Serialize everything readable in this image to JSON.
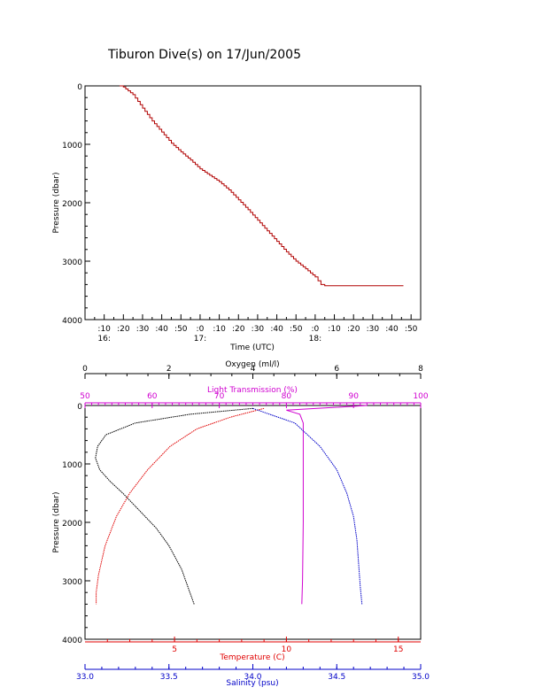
{
  "title": "Tiburon Dive(s) on 17/Jun/2005",
  "colors": {
    "axis": "#000000",
    "depth_trace": "#b00000",
    "oxygen": "#000000",
    "light": "#d000d0",
    "temperature": "#e00000",
    "salinity": "#0000c8"
  },
  "chart_data": [
    {
      "type": "line",
      "title": "Tiburon Dive(s) on 17/Jun/2005",
      "xlabel": "Time (UTC)",
      "ylabel": "Pressure (dbar)",
      "x_unit": "minutes after 16:00 UTC",
      "xlim": [
        0,
        175
      ],
      "ylim": [
        4000,
        0
      ],
      "y_ticks": [
        "0",
        "1000",
        "2000",
        "3000",
        "4000"
      ],
      "x_ticks": [
        ":10",
        ":20",
        ":30",
        ":40",
        ":50",
        ":0",
        ":10",
        ":20",
        ":30",
        ":40",
        ":50",
        ":0",
        ":10",
        ":20",
        ":30",
        ":40",
        ":50"
      ],
      "x_tick_values": [
        10,
        20,
        30,
        40,
        50,
        60,
        70,
        80,
        90,
        100,
        110,
        120,
        130,
        140,
        150,
        160,
        170
      ],
      "hour_labels": [
        "16:",
        "17:",
        "18:"
      ],
      "hour_label_values": [
        10,
        60,
        120
      ],
      "grid": false,
      "series": [
        {
          "x": [
            18,
            20,
            25,
            30,
            35,
            40,
            45,
            50,
            55,
            60,
            65,
            70,
            75,
            80,
            85,
            90,
            95,
            100,
            105,
            110,
            115,
            120,
            123,
            125,
            130,
            140,
            150,
            160,
            166
          ],
          "y": [
            0,
            20,
            150,
            380,
            600,
            790,
            980,
            1130,
            1270,
            1420,
            1530,
            1640,
            1780,
            1950,
            2120,
            2300,
            2480,
            2660,
            2840,
            3000,
            3130,
            3270,
            3400,
            3420,
            3420,
            3420,
            3420,
            3420,
            3420
          ]
        }
      ]
    },
    {
      "type": "line",
      "ylabel": "Pressure (dbar)",
      "ylim": [
        4000,
        0
      ],
      "y_ticks": [
        "0",
        "1000",
        "2000",
        "3000",
        "4000"
      ],
      "grid": false,
      "axes": {
        "oxygen": {
          "label": "Oxygen (ml/l)",
          "range": [
            0,
            8
          ],
          "ticks": [
            "0",
            "2",
            "4",
            "6",
            "8"
          ]
        },
        "light_transmission": {
          "label": "Light Transmission (%)",
          "range": [
            50,
            100
          ],
          "ticks": [
            "50",
            "60",
            "70",
            "80",
            "90",
            "100"
          ]
        },
        "temperature": {
          "label": "Temperature (C)",
          "range": [
            1,
            16
          ],
          "ticks": [
            "5",
            "10",
            "15"
          ]
        },
        "salinity": {
          "label": "Salinity (psu)",
          "range": [
            33.0,
            35.0
          ],
          "ticks": [
            "33.0",
            "33.5",
            "34.0",
            "34.5",
            "35.0"
          ]
        }
      },
      "series": [
        {
          "name": "Oxygen (ml/l)",
          "axis": "oxygen",
          "x": [
            4.0,
            2.5,
            1.2,
            0.5,
            0.3,
            0.25,
            0.35,
            0.6,
            0.9,
            1.3,
            1.7,
            2.0,
            2.3,
            2.5,
            2.6
          ],
          "y": [
            50,
            150,
            300,
            500,
            700,
            900,
            1100,
            1300,
            1500,
            1800,
            2100,
            2400,
            2800,
            3200,
            3400
          ]
        },
        {
          "name": "Light Transmission (%)",
          "axis": "light_transmission",
          "x": [
            92,
            80,
            82,
            82.5,
            82.5,
            82.5,
            82.4,
            82.3
          ],
          "y": [
            0,
            80,
            150,
            300,
            1000,
            2000,
            3000,
            3400
          ]
        },
        {
          "name": "Temperature (C)",
          "axis": "temperature",
          "x": [
            9.0,
            7.5,
            6.0,
            4.8,
            3.8,
            3.0,
            2.4,
            1.9,
            1.6,
            1.5,
            1.5
          ],
          "y": [
            50,
            200,
            400,
            700,
            1100,
            1500,
            1900,
            2400,
            2900,
            3200,
            3400
          ]
        },
        {
          "name": "Salinity (psu)",
          "axis": "salinity",
          "x": [
            34.0,
            34.25,
            34.4,
            34.5,
            34.56,
            34.6,
            34.62,
            34.63,
            34.64,
            34.65
          ],
          "y": [
            50,
            300,
            700,
            1100,
            1500,
            1900,
            2300,
            2700,
            3100,
            3400
          ]
        }
      ]
    }
  ]
}
